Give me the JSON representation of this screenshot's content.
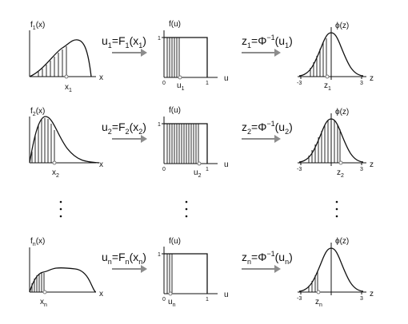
{
  "rows": [
    {
      "density_label": [
        "f",
        "1",
        "(x)"
      ],
      "x_axis_label": "x",
      "sample_label": [
        "x",
        "1"
      ],
      "transform_1": [
        "u",
        "1",
        "=F",
        "1",
        "(x",
        "1",
        ")"
      ],
      "uniform_label": "f(u)",
      "uniform_axis_label": "u",
      "uniform_ticks": [
        "0",
        "1"
      ],
      "uniform_y_tick": "1",
      "u_sample_label": [
        "u",
        "1"
      ],
      "transform_2": [
        "z",
        "1",
        "=Φ",
        "−1",
        "(u",
        "1",
        ")"
      ],
      "normal_label": "ϕ(z)",
      "normal_axis_label": "z",
      "normal_ticks": [
        "-3",
        "3"
      ],
      "z_sample_label": [
        "z",
        "1"
      ]
    },
    {
      "density_label": [
        "f",
        "2",
        "(x)"
      ],
      "x_axis_label": "x",
      "sample_label": [
        "x",
        "2"
      ],
      "transform_1": [
        "u",
        "2",
        "=F",
        "2",
        "(x",
        "2",
        ")"
      ],
      "uniform_label": "f(u)",
      "uniform_axis_label": "u",
      "uniform_ticks": [
        "0",
        "1"
      ],
      "uniform_y_tick": "1",
      "u_sample_label": [
        "u",
        "2"
      ],
      "transform_2": [
        "z",
        "2",
        "=Φ",
        "−1",
        "(u",
        "2",
        ")"
      ],
      "normal_label": "ϕ(z)",
      "normal_axis_label": "z",
      "normal_ticks": [
        "-3",
        "3"
      ],
      "z_sample_label": [
        "z",
        "2"
      ]
    },
    {
      "density_label": [
        "f",
        "n",
        "(x)"
      ],
      "x_axis_label": "x",
      "sample_label": [
        "x",
        "n"
      ],
      "transform_1": [
        "u",
        "n",
        "=F",
        "n",
        "(x",
        "n",
        ")"
      ],
      "uniform_label": "f(u)",
      "uniform_axis_label": "u",
      "uniform_ticks": [
        "0",
        "1"
      ],
      "uniform_y_tick": "1",
      "u_sample_label": [
        "u",
        "n"
      ],
      "transform_2": [
        "z",
        "n",
        "=Φ",
        "−1",
        "(u",
        "n",
        ")"
      ],
      "normal_label": "ϕ(z)",
      "normal_axis_label": "z",
      "normal_ticks": [
        "-3",
        "3"
      ],
      "z_sample_label": [
        "z",
        "n"
      ]
    }
  ],
  "colors": {
    "ink": "#111111",
    "arrow": "#8c8c8c"
  }
}
